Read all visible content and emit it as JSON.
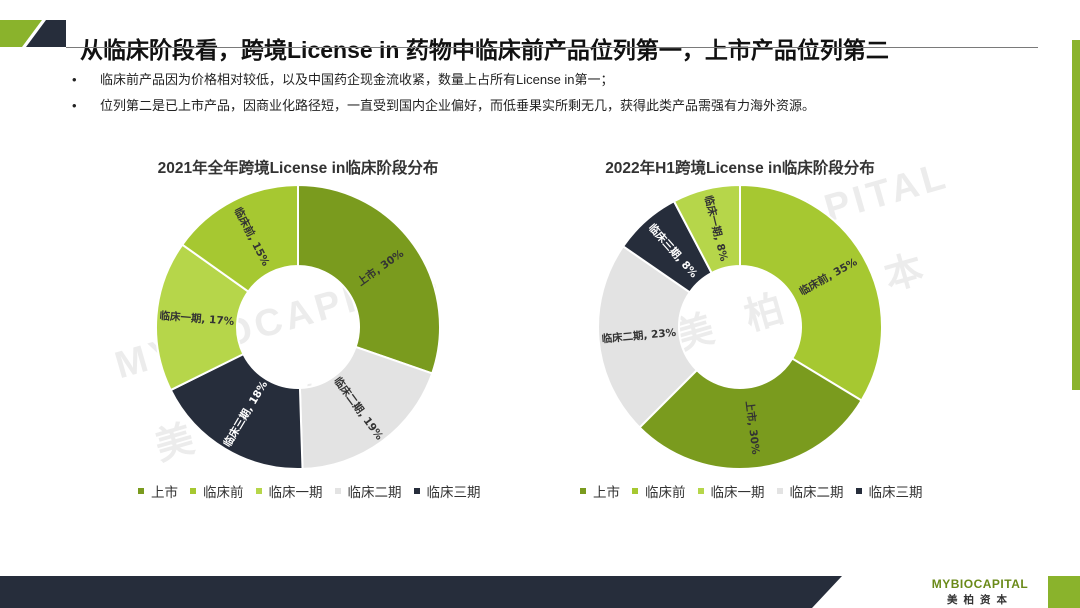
{
  "header": {
    "title": "从临床阶段看，跨境License in 药物中临床前产品位列第一，上市产品位列第二"
  },
  "bullets": [
    "临床前产品因为价格相对较低，以及中国药企现金流收紧，数量上占所有License  in第一；",
    "位列第二是已上市产品，因商业化路径短，一直受到国内企业偏好，而低垂果实所剩无几，获得此类产品需强有力海外资源。"
  ],
  "bullet_symbol": "•",
  "watermark": {
    "text": "MYBIOCAPITAL",
    "cn": "美 柏 资 本"
  },
  "logo": {
    "en": "MYBIOCAPITAL",
    "cn": "美柏资本"
  },
  "colors": {
    "上市": "#7a9b1e",
    "临床前": "#a6c831",
    "临床一期": "#b6d64a",
    "临床二期": "#e3e3e3",
    "临床三期": "#262d3b",
    "accent": "#8ab32c",
    "dark": "#262d3b"
  },
  "chart_data": [
    {
      "type": "pie",
      "title": "2021年全年跨境License in临床阶段分布",
      "categories": [
        "上市",
        "临床二期",
        "临床三期",
        "临床一期",
        "临床前"
      ],
      "values": [
        30,
        19,
        18,
        17,
        15
      ],
      "unit": "%",
      "slice_labels": [
        "上市, 30%",
        "临床二期, 19%",
        "临床三期, 18%",
        "临床一期, 17%",
        "临床前, 15%"
      ],
      "legend": [
        "上市",
        "临床前",
        "临床一期",
        "临床二期",
        "临床三期"
      ],
      "legend_position": "bottom"
    },
    {
      "type": "pie",
      "title": "2022年H1跨境License in临床阶段分布",
      "categories": [
        "临床前",
        "上市",
        "临床二期",
        "临床三期",
        "临床一期"
      ],
      "values": [
        35,
        30,
        23,
        8,
        8
      ],
      "unit": "%",
      "slice_labels": [
        "临床前, 35%",
        "上市, 30%",
        "临床二期, 23%",
        "临床三期, 8%",
        "临床一期, 8%"
      ],
      "legend": [
        "上市",
        "临床前",
        "临床一期",
        "临床二期",
        "临床三期"
      ],
      "legend_position": "bottom"
    }
  ]
}
